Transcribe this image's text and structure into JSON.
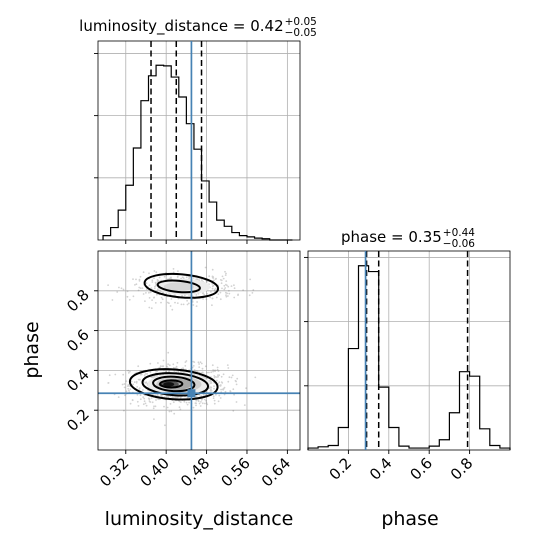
{
  "colors": {
    "truth": "#4682b4",
    "hist": "#000000",
    "grid": "#b0b0b0",
    "points": "#808080"
  },
  "chart_data": {
    "type": "corner",
    "parameters": [
      "luminosity_distance",
      "phase"
    ],
    "truths": {
      "luminosity_distance": 0.45,
      "phase": 0.285
    },
    "grid": true,
    "panels": {
      "luminosity_distance": {
        "type": "histogram",
        "title": {
          "base": "luminosity_distance = 0.42",
          "sup": "+0.05",
          "sub": "−0.05"
        },
        "xlim": [
          0.265,
          0.665
        ],
        "ylim": [
          0,
          3.2
        ],
        "bin_edges": [
          0.275,
          0.29,
          0.305,
          0.32,
          0.335,
          0.35,
          0.365,
          0.38,
          0.395,
          0.41,
          0.425,
          0.44,
          0.455,
          0.47,
          0.485,
          0.5,
          0.515,
          0.53,
          0.545,
          0.56,
          0.575,
          0.59,
          0.605,
          0.62,
          0.635,
          0.65
        ],
        "values": [
          0.07,
          0.2,
          0.48,
          0.88,
          1.48,
          2.24,
          2.64,
          2.81,
          2.8,
          2.62,
          2.3,
          1.87,
          1.46,
          0.95,
          0.61,
          0.32,
          0.22,
          0.12,
          0.07,
          0.05,
          0.03,
          0.02,
          0.0,
          0.0,
          0.0
        ],
        "quantiles": [
          0.37,
          0.42,
          0.47
        ],
        "yticks": [
          1,
          2,
          3
        ],
        "xticks": [
          0.32,
          0.4,
          0.48,
          0.56,
          0.64
        ],
        "xtick_labels": [
          "0.32",
          "0.40",
          "0.48",
          "0.56",
          "0.64"
        ]
      },
      "phase": {
        "type": "histogram",
        "title": {
          "base": "phase = 0.35",
          "sup": "+0.44",
          "sub": "−0.06"
        },
        "xlim": [
          0.0,
          1.0
        ],
        "ylim": [
          0,
          3.1
        ],
        "bin_edges": [
          0.0,
          0.05,
          0.1,
          0.15,
          0.2,
          0.25,
          0.3,
          0.35,
          0.4,
          0.45,
          0.5,
          0.55,
          0.6,
          0.65,
          0.7,
          0.75,
          0.8,
          0.85,
          0.9,
          0.95,
          1.0
        ],
        "values": [
          0.03,
          0.05,
          0.07,
          0.35,
          1.58,
          2.87,
          2.78,
          0.98,
          0.35,
          0.06,
          0.03,
          0.03,
          0.06,
          0.16,
          0.58,
          1.22,
          1.15,
          0.33,
          0.07,
          0.03
        ],
        "quantiles": [
          0.29,
          0.35,
          0.79
        ],
        "yticks": [
          1,
          2,
          3
        ],
        "xticks": [
          0.2,
          0.4,
          0.6,
          0.8
        ],
        "xtick_labels": [
          "0.2",
          "0.4",
          "0.6",
          "0.8"
        ],
        "xlabel": "phase"
      },
      "joint": {
        "type": "2d-density",
        "x": "luminosity_distance",
        "y": "phase",
        "xlim": [
          0.265,
          0.665
        ],
        "ylim": [
          0.0,
          1.0
        ],
        "xlabel": "luminosity_distance",
        "ylabel": "phase",
        "xticks": [
          0.32,
          0.4,
          0.48,
          0.56,
          0.64
        ],
        "xtick_labels": [
          "0.32",
          "0.40",
          "0.48",
          "0.56",
          "0.64"
        ],
        "yticks": [
          0.2,
          0.4,
          0.6,
          0.8
        ],
        "ytick_labels": [
          "0.2",
          "0.4",
          "0.6",
          "0.8"
        ],
        "modes": [
          {
            "center": [
              0.42,
              0.33
            ],
            "contour_levels": [
              "0.5",
              "1.0",
              "1.5",
              "2.0 sigma"
            ]
          },
          {
            "center": [
              0.43,
              0.82
            ],
            "contour_levels": [
              "0.5",
              "1.0"
            ]
          }
        ]
      }
    }
  }
}
